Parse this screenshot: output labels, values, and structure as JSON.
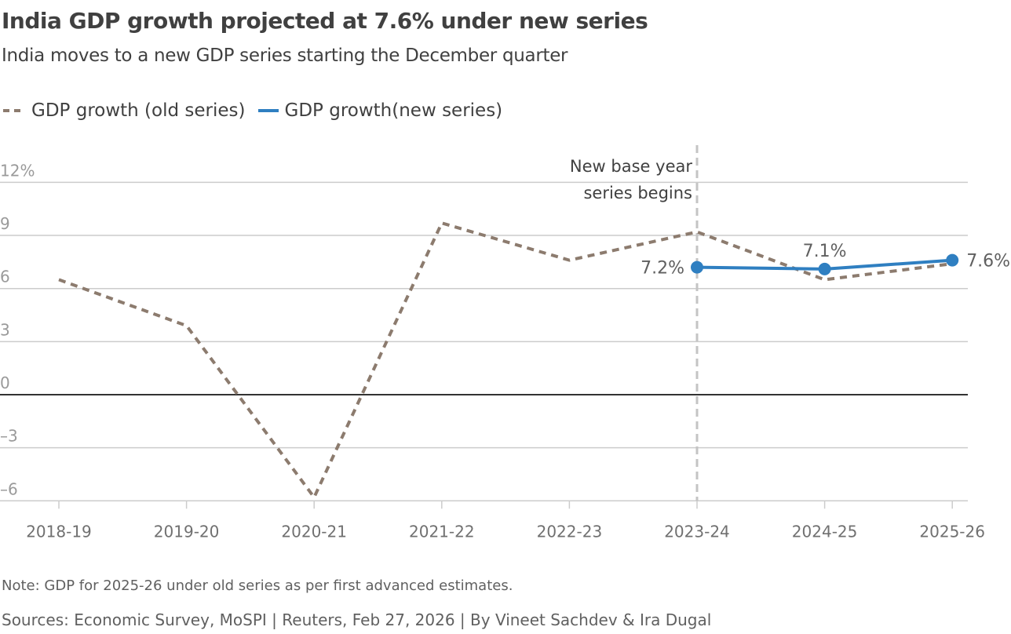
{
  "title": "India GDP growth projected at 7.6% under new series",
  "subtitle": "India moves to a new GDP series starting the December quarter",
  "note": "Note: GDP for 2025-26 under old series as per first advanced estimates.",
  "source": "Sources: Economic Survey, MoSPI | Reuters, Feb 27, 2026 | By Vineet Sachdev & Ira Dugal",
  "chart_data": {
    "type": "line",
    "categories": [
      "2018-19",
      "2019-20",
      "2020-21",
      "2021-22",
      "2022-23",
      "2023-24",
      "2024-25",
      "2025-26"
    ],
    "series": [
      {
        "name": "GDP growth (old series)",
        "color": "#8c7b6e",
        "style": "dashed",
        "values": [
          6.5,
          3.9,
          -5.8,
          9.7,
          7.6,
          9.2,
          6.5,
          7.4
        ]
      },
      {
        "name": "GDP growth(new series)",
        "color": "#2f7fc1",
        "style": "solid",
        "markers": true,
        "values": [
          null,
          null,
          null,
          null,
          null,
          7.2,
          7.1,
          7.6
        ],
        "data_labels": [
          null,
          null,
          null,
          null,
          null,
          "7.2%",
          "7.1%",
          "7.6%"
        ]
      }
    ],
    "yticks": [
      12,
      9,
      6,
      3,
      0,
      -3,
      -6
    ],
    "ytick_labels": [
      "12%",
      "9",
      "6",
      "3",
      "0",
      "–3",
      "–6"
    ],
    "ylim": [
      -6,
      12
    ],
    "grid": true,
    "legend": "top-left",
    "annotation": {
      "category": "2023-24",
      "lines": [
        "New base year",
        "series begins"
      ]
    }
  }
}
